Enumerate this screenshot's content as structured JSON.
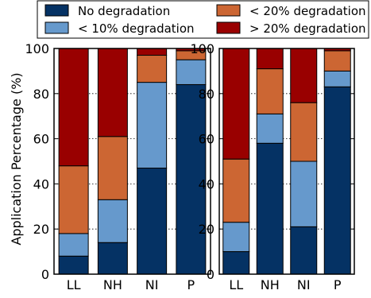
{
  "chart_data": {
    "type": "bar",
    "stacked": true,
    "ylabel": "Application Percentage (%)",
    "ylim": [
      0,
      100
    ],
    "yticks": [
      0,
      20,
      40,
      60,
      80,
      100
    ],
    "grid": "horizontal dotted",
    "legend": {
      "placement": "top",
      "entries": [
        {
          "label": "No degradation",
          "color": "#053264"
        },
        {
          "label": "< 20% degradation",
          "color": "#CC6633"
        },
        {
          "label": "< 10% degradation",
          "color": "#6699CC"
        },
        {
          "label": "> 20% degradation",
          "color": "#990000"
        }
      ]
    },
    "panels": [
      {
        "categories": [
          "LL",
          "NH",
          "NI",
          "P"
        ],
        "series": [
          {
            "name": "No degradation",
            "color": "#053264",
            "values": [
              8,
              14,
              47,
              84
            ]
          },
          {
            "name": "< 10% degradation",
            "color": "#6699CC",
            "values": [
              10,
              19,
              38,
              11
            ]
          },
          {
            "name": "< 20% degradation",
            "color": "#CC6633",
            "values": [
              30,
              28,
              12,
              4
            ]
          },
          {
            "name": "> 20% degradation",
            "color": "#990000",
            "values": [
              52,
              39,
              3,
              1
            ]
          }
        ]
      },
      {
        "categories": [
          "LL",
          "NH",
          "NI",
          "P"
        ],
        "series": [
          {
            "name": "No degradation",
            "color": "#053264",
            "values": [
              10,
              58,
              21,
              83
            ]
          },
          {
            "name": "< 10% degradation",
            "color": "#6699CC",
            "values": [
              13,
              13,
              29,
              7
            ]
          },
          {
            "name": "< 20% degradation",
            "color": "#CC6633",
            "values": [
              28,
              20,
              26,
              9
            ]
          },
          {
            "name": "> 20% degradation",
            "color": "#990000",
            "values": [
              49,
              9,
              24,
              1
            ]
          }
        ]
      }
    ]
  }
}
